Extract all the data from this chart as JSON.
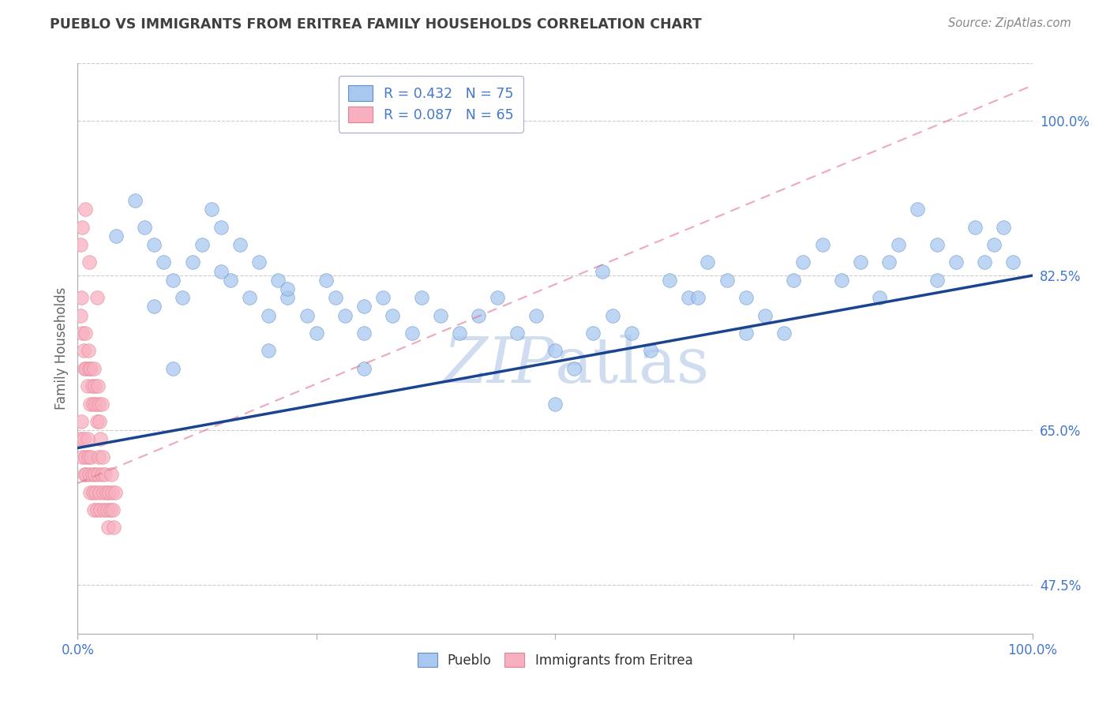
{
  "title": "PUEBLO VS IMMIGRANTS FROM ERITREA FAMILY HOUSEHOLDS CORRELATION CHART",
  "source": "Source: ZipAtlas.com",
  "ylabel": "Family Households",
  "x_min": 0.0,
  "x_max": 1.0,
  "y_min": 0.42,
  "y_max": 1.065,
  "yticks": [
    0.475,
    0.65,
    0.825,
    1.0
  ],
  "ytick_labels": [
    "47.5%",
    "65.0%",
    "82.5%",
    "100.0%"
  ],
  "xtick_labels_left": "0.0%",
  "xtick_labels_right": "100.0%",
  "blue_color": "#A8C8F0",
  "blue_edge": "#6090C8",
  "pink_color": "#F8B0C0",
  "pink_edge": "#E08090",
  "trend_blue_color": "#1A4490",
  "trend_pink_color": "#E07090",
  "title_color": "#404040",
  "axis_label_color": "#666666",
  "ytick_color": "#4477CC",
  "xtick_color": "#4477CC",
  "watermark_color": "#D0DCF0",
  "grid_color": "#CCCCCC",
  "background_color": "#FFFFFF",
  "pueblo_x": [
    0.04,
    0.06,
    0.07,
    0.08,
    0.09,
    0.1,
    0.11,
    0.12,
    0.13,
    0.14,
    0.15,
    0.16,
    0.17,
    0.18,
    0.19,
    0.2,
    0.21,
    0.22,
    0.24,
    0.25,
    0.26,
    0.27,
    0.28,
    0.3,
    0.32,
    0.33,
    0.35,
    0.36,
    0.38,
    0.4,
    0.42,
    0.44,
    0.46,
    0.48,
    0.5,
    0.52,
    0.54,
    0.56,
    0.58,
    0.6,
    0.62,
    0.64,
    0.66,
    0.68,
    0.7,
    0.72,
    0.74,
    0.76,
    0.78,
    0.8,
    0.82,
    0.84,
    0.86,
    0.88,
    0.9,
    0.92,
    0.94,
    0.96,
    0.97,
    0.98,
    0.1,
    0.2,
    0.5,
    0.7,
    0.3,
    0.08,
    0.15,
    0.22,
    0.3,
    0.55,
    0.65,
    0.75,
    0.85,
    0.9,
    0.95
  ],
  "pueblo_y": [
    0.87,
    0.91,
    0.88,
    0.86,
    0.84,
    0.82,
    0.8,
    0.84,
    0.86,
    0.9,
    0.88,
    0.82,
    0.86,
    0.8,
    0.84,
    0.78,
    0.82,
    0.8,
    0.78,
    0.76,
    0.82,
    0.8,
    0.78,
    0.76,
    0.8,
    0.78,
    0.76,
    0.8,
    0.78,
    0.76,
    0.78,
    0.8,
    0.76,
    0.78,
    0.74,
    0.72,
    0.76,
    0.78,
    0.76,
    0.74,
    0.82,
    0.8,
    0.84,
    0.82,
    0.8,
    0.78,
    0.76,
    0.84,
    0.86,
    0.82,
    0.84,
    0.8,
    0.86,
    0.9,
    0.86,
    0.84,
    0.88,
    0.86,
    0.88,
    0.84,
    0.72,
    0.74,
    0.68,
    0.76,
    0.72,
    0.79,
    0.83,
    0.81,
    0.79,
    0.83,
    0.8,
    0.82,
    0.84,
    0.82,
    0.84
  ],
  "eritrea_x": [
    0.003,
    0.004,
    0.005,
    0.006,
    0.007,
    0.008,
    0.009,
    0.01,
    0.011,
    0.012,
    0.013,
    0.014,
    0.015,
    0.016,
    0.017,
    0.018,
    0.019,
    0.02,
    0.021,
    0.022,
    0.023,
    0.024,
    0.025,
    0.003,
    0.004,
    0.005,
    0.006,
    0.007,
    0.008,
    0.009,
    0.01,
    0.011,
    0.012,
    0.013,
    0.014,
    0.015,
    0.016,
    0.017,
    0.018,
    0.019,
    0.02,
    0.021,
    0.022,
    0.023,
    0.024,
    0.025,
    0.026,
    0.027,
    0.028,
    0.029,
    0.03,
    0.031,
    0.032,
    0.033,
    0.034,
    0.035,
    0.036,
    0.037,
    0.038,
    0.039,
    0.003,
    0.005,
    0.008,
    0.012,
    0.02
  ],
  "eritrea_y": [
    0.78,
    0.8,
    0.76,
    0.74,
    0.72,
    0.76,
    0.72,
    0.7,
    0.74,
    0.72,
    0.68,
    0.72,
    0.7,
    0.68,
    0.72,
    0.7,
    0.68,
    0.66,
    0.7,
    0.68,
    0.66,
    0.64,
    0.68,
    0.64,
    0.66,
    0.62,
    0.64,
    0.6,
    0.62,
    0.6,
    0.64,
    0.62,
    0.6,
    0.58,
    0.62,
    0.6,
    0.58,
    0.56,
    0.6,
    0.58,
    0.56,
    0.6,
    0.62,
    0.58,
    0.56,
    0.6,
    0.62,
    0.58,
    0.56,
    0.6,
    0.58,
    0.56,
    0.54,
    0.58,
    0.56,
    0.6,
    0.58,
    0.56,
    0.54,
    0.58,
    0.86,
    0.88,
    0.9,
    0.84,
    0.8
  ],
  "blue_trend_x0": 0.0,
  "blue_trend_y0": 0.63,
  "blue_trend_x1": 1.0,
  "blue_trend_y1": 0.825,
  "pink_trend_x0": 0.0,
  "pink_trend_y0": 0.59,
  "pink_trend_x1": 1.0,
  "pink_trend_y1": 1.04
}
